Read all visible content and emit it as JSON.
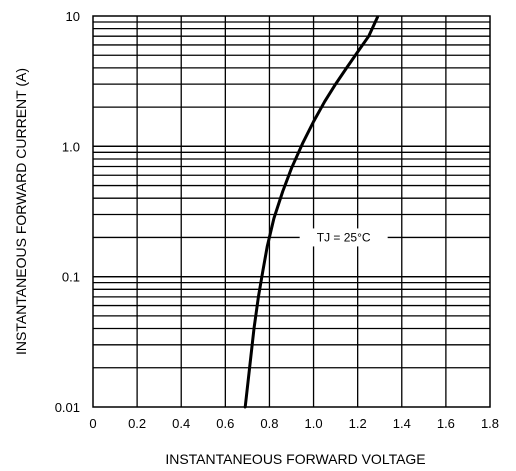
{
  "chart_data": {
    "type": "line",
    "title": "",
    "xlabel": "INSTANTANEOUS FORWARD VOLTAGE",
    "ylabel": "INSTANTANEOUS FORWARD CURRENT (A)",
    "x_ticks": [
      "0",
      "0.2",
      "0.4",
      "0.6",
      "0.8",
      "1.0",
      "1.2",
      "1.4",
      "1.6",
      "1.8"
    ],
    "y_ticks": [
      "0.01",
      "0.1",
      "1.0",
      "10"
    ],
    "xlim": [
      0,
      1.8
    ],
    "ylim": [
      0.01,
      10
    ],
    "y_scale": "log",
    "grid": true,
    "annotation": "TJ = 25°C",
    "series": [
      {
        "x": [
          0.69,
          0.71,
          0.73,
          0.75,
          0.77,
          0.79,
          0.82,
          0.86,
          0.9,
          0.95,
          1.0,
          1.05,
          1.1,
          1.15,
          1.2,
          1.25,
          1.29
        ],
        "y": [
          0.01,
          0.02,
          0.04,
          0.07,
          0.11,
          0.17,
          0.28,
          0.45,
          0.68,
          1.05,
          1.55,
          2.2,
          3.0,
          4.0,
          5.3,
          7.0,
          9.8
        ]
      }
    ]
  }
}
